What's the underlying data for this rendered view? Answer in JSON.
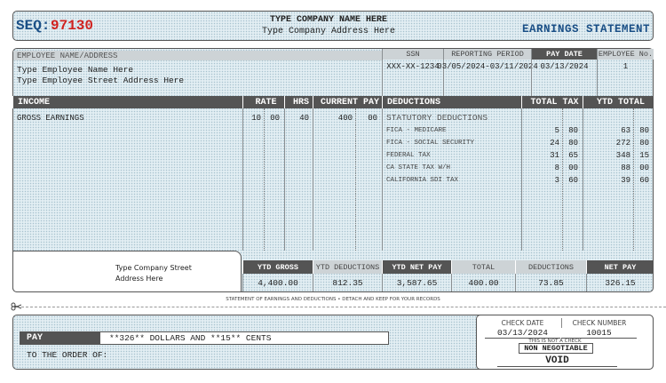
{
  "seq": {
    "label": "SEQ:",
    "number": "97130"
  },
  "company": {
    "name": "TYPE COMPANY NAME HERE",
    "address": "Type Company Address Here"
  },
  "title": "EARNINGS STATEMENT",
  "employee": {
    "header": "EMPLOYEE NAME/ADDRESS",
    "name": "Type Employee Name Here",
    "address": "Type Employee Street Address Here"
  },
  "info": {
    "headers": [
      "SSN",
      "REPORTING PERIOD",
      "PAY DATE",
      "EMPLOYEE No."
    ],
    "values": [
      "XXX-XX-1234",
      "03/05/2024-03/11/2024",
      "03/13/2024",
      "1"
    ]
  },
  "income": {
    "headers": [
      "INCOME",
      "RATE",
      "HRS",
      "CURRENT PAY"
    ],
    "rows": [
      {
        "name": "GROSS EARNINGS",
        "rate": [
          "10",
          "00"
        ],
        "hours": "40",
        "current": [
          "400",
          "00"
        ]
      }
    ]
  },
  "deductions": {
    "headers": [
      "DEDUCTIONS",
      "TOTAL TAX",
      "YTD TOTAL"
    ],
    "section": "STATUTORY DEDUCTIONS",
    "rows": [
      {
        "name": "FICA - MEDICARE",
        "tax": [
          "5",
          "80"
        ],
        "ytd": [
          "63",
          "80"
        ]
      },
      {
        "name": "FICA - SOCIAL SECURITY",
        "tax": [
          "24",
          "80"
        ],
        "ytd": [
          "272",
          "80"
        ]
      },
      {
        "name": "FEDERAL TAX",
        "tax": [
          "31",
          "65"
        ],
        "ytd": [
          "348",
          "15"
        ]
      },
      {
        "name": "CA STATE TAX W/H",
        "tax": [
          "8",
          "00"
        ],
        "ytd": [
          "88",
          "00"
        ]
      },
      {
        "name": "CALIFORNIA SDI TAX",
        "tax": [
          "3",
          "60"
        ],
        "ytd": [
          "39",
          "60"
        ]
      }
    ]
  },
  "company_street": "Type Company Street Address Here",
  "totals": {
    "headers": [
      "YTD GROSS",
      "YTD DEDUCTIONS",
      "YTD NET PAY",
      "TOTAL",
      "DEDUCTIONS",
      "NET PAY"
    ],
    "values": [
      "4,400.00",
      "812.35",
      "3,587.65",
      "400.00",
      "73.85",
      "326.15"
    ]
  },
  "footer": "STATEMENT OF EARNINGS AND DEDUCTIONS • DETACH AND KEEP FOR YOUR RECORDS",
  "check": {
    "pay": "PAY",
    "amount": "**326** DOLLARS AND **15** CENTS",
    "order": "TO THE ORDER OF:",
    "date_label": "CHECK DATE",
    "number_label": "CHECK NUMBER",
    "date": "03/13/2024",
    "number": "10015",
    "notice": "THIS IS NOT A CHECK",
    "stamp": "NON NEGOTIABLE",
    "void": "VOID"
  }
}
